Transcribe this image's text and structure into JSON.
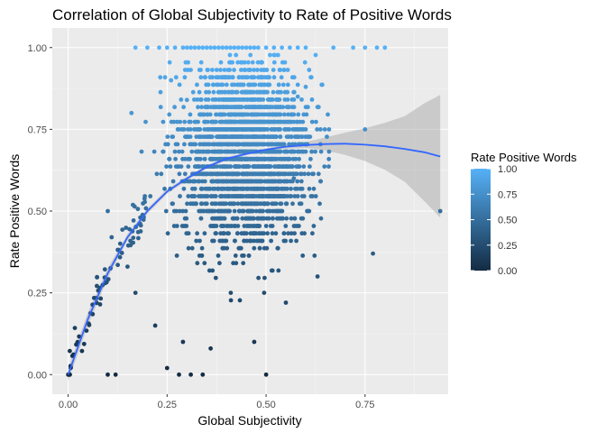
{
  "chart_data": {
    "type": "scatter",
    "title": "Correlation of Global Subjectivity to Rate of Positive Words",
    "xlabel": "Global Subjectivity",
    "ylabel": "Rate Positive Words",
    "xlim": [
      -0.04,
      0.96
    ],
    "ylim": [
      -0.06,
      1.06
    ],
    "x_ticks": [
      0.0,
      0.25,
      0.5,
      0.75
    ],
    "x_tick_labels": [
      "0.00",
      "0.25",
      "0.50",
      "0.75"
    ],
    "y_ticks": [
      0.0,
      0.25,
      0.5,
      0.75,
      1.0
    ],
    "y_tick_labels": [
      "0.00",
      "0.25",
      "0.50",
      "0.75",
      "1.00"
    ],
    "grid": true,
    "legend": {
      "title": "Rate Positive Words",
      "position": "right",
      "breaks": [
        0.0,
        0.25,
        0.5,
        0.75,
        1.0
      ],
      "labels": [
        "0.00",
        "0.25",
        "0.50",
        "0.75",
        "1.00"
      ],
      "low_color": "#132b43",
      "high_color": "#56b1f7"
    },
    "cloud": {
      "n_points": 2600,
      "x_center": 0.45,
      "x_spread": 0.08,
      "y_center": 0.68,
      "y_spread": 0.14
    },
    "points": [
      {
        "x": 0.0,
        "y": 0.0
      },
      {
        "x": 0.1,
        "y": 0.0
      },
      {
        "x": 0.12,
        "y": 0.0
      },
      {
        "x": 0.28,
        "y": 0.0
      },
      {
        "x": 0.31,
        "y": 0.0
      },
      {
        "x": 0.34,
        "y": 0.0
      },
      {
        "x": 0.5,
        "y": 0.0
      },
      {
        "x": 0.25,
        "y": 0.02
      },
      {
        "x": 0.36,
        "y": 0.08
      },
      {
        "x": 0.29,
        "y": 0.1
      },
      {
        "x": 0.22,
        "y": 0.15
      },
      {
        "x": 0.1,
        "y": 0.5
      },
      {
        "x": 0.11,
        "y": 0.42
      },
      {
        "x": 0.15,
        "y": 0.33
      },
      {
        "x": 0.17,
        "y": 0.25
      },
      {
        "x": 0.16,
        "y": 0.8
      },
      {
        "x": 0.75,
        "y": 0.75
      },
      {
        "x": 0.77,
        "y": 0.37
      },
      {
        "x": 0.94,
        "y": 0.5
      },
      {
        "x": 0.63,
        "y": 0.3
      },
      {
        "x": 0.6,
        "y": 0.88
      },
      {
        "x": 0.6,
        "y": 0.75
      },
      {
        "x": 0.58,
        "y": 0.85
      },
      {
        "x": 0.17,
        "y": 1.0
      },
      {
        "x": 0.2,
        "y": 1.0
      },
      {
        "x": 0.23,
        "y": 1.0
      },
      {
        "x": 0.25,
        "y": 1.0
      },
      {
        "x": 0.27,
        "y": 1.0
      },
      {
        "x": 0.29,
        "y": 1.0
      },
      {
        "x": 0.3,
        "y": 1.0
      },
      {
        "x": 0.31,
        "y": 1.0
      },
      {
        "x": 0.32,
        "y": 1.0
      },
      {
        "x": 0.33,
        "y": 1.0
      },
      {
        "x": 0.34,
        "y": 1.0
      },
      {
        "x": 0.35,
        "y": 1.0
      },
      {
        "x": 0.36,
        "y": 1.0
      },
      {
        "x": 0.37,
        "y": 1.0
      },
      {
        "x": 0.38,
        "y": 1.0
      },
      {
        "x": 0.39,
        "y": 1.0
      },
      {
        "x": 0.4,
        "y": 1.0
      },
      {
        "x": 0.41,
        "y": 1.0
      },
      {
        "x": 0.42,
        "y": 1.0
      },
      {
        "x": 0.43,
        "y": 1.0
      },
      {
        "x": 0.44,
        "y": 1.0
      },
      {
        "x": 0.45,
        "y": 1.0
      },
      {
        "x": 0.46,
        "y": 1.0
      },
      {
        "x": 0.47,
        "y": 1.0
      },
      {
        "x": 0.48,
        "y": 1.0
      },
      {
        "x": 0.5,
        "y": 1.0
      },
      {
        "x": 0.52,
        "y": 1.0
      },
      {
        "x": 0.54,
        "y": 1.0
      },
      {
        "x": 0.56,
        "y": 1.0
      },
      {
        "x": 0.58,
        "y": 1.0
      },
      {
        "x": 0.6,
        "y": 1.0
      },
      {
        "x": 0.67,
        "y": 1.0
      },
      {
        "x": 0.72,
        "y": 1.0
      },
      {
        "x": 0.75,
        "y": 1.0
      },
      {
        "x": 0.78,
        "y": 1.0
      },
      {
        "x": 0.8,
        "y": 1.0
      },
      {
        "x": 0.26,
        "y": 0.9
      },
      {
        "x": 0.3,
        "y": 0.84
      },
      {
        "x": 0.57,
        "y": 0.6
      },
      {
        "x": 0.55,
        "y": 0.22
      },
      {
        "x": 0.47,
        "y": 0.1
      }
    ],
    "smooth": {
      "x": [
        0.0,
        0.05,
        0.1,
        0.15,
        0.2,
        0.25,
        0.3,
        0.35,
        0.4,
        0.45,
        0.5,
        0.55,
        0.6,
        0.65,
        0.7,
        0.75,
        0.8,
        0.85,
        0.9,
        0.94
      ],
      "y": [
        0.0,
        0.17,
        0.31,
        0.42,
        0.5,
        0.56,
        0.6,
        0.635,
        0.66,
        0.675,
        0.688,
        0.697,
        0.702,
        0.705,
        0.706,
        0.703,
        0.698,
        0.69,
        0.68,
        0.667
      ],
      "lower": [
        -0.02,
        0.15,
        0.295,
        0.41,
        0.492,
        0.553,
        0.594,
        0.63,
        0.655,
        0.671,
        0.684,
        0.691,
        0.693,
        0.685,
        0.672,
        0.653,
        0.626,
        0.59,
        0.53,
        0.48
      ],
      "upper": [
        0.02,
        0.19,
        0.325,
        0.43,
        0.508,
        0.567,
        0.606,
        0.64,
        0.665,
        0.679,
        0.692,
        0.703,
        0.711,
        0.725,
        0.74,
        0.753,
        0.77,
        0.79,
        0.83,
        0.855
      ]
    }
  }
}
